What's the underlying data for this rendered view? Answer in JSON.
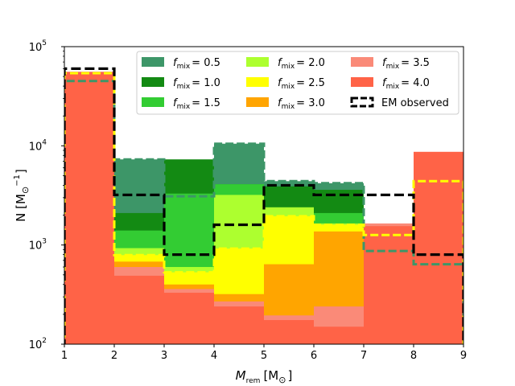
{
  "chart_data": {
    "type": "bar",
    "subtype": "stepfilled-histogram",
    "yscale": "log",
    "xlabel_main": "M",
    "xlabel_sub": "rem",
    "xlabel_unit": "[M",
    "xlabel_unit_sub": "⊙",
    "xlabel_unit_close": "]",
    "ylabel_text": "N [M",
    "ylabel_sub": "⊙",
    "ylabel_sup": "−1",
    "ylabel_close": "]",
    "xlim": [
      1,
      9
    ],
    "ylim": [
      100,
      100000
    ],
    "x_ticks": [
      "1",
      "2",
      "3",
      "4",
      "5",
      "6",
      "7",
      "8",
      "9"
    ],
    "y_ticks": [
      {
        "base": "10",
        "exp": "2",
        "value": 100
      },
      {
        "base": "10",
        "exp": "3",
        "value": 1000
      },
      {
        "base": "10",
        "exp": "4",
        "value": 10000
      },
      {
        "base": "10",
        "exp": "5",
        "value": 100000
      }
    ],
    "bin_edges": [
      1,
      2,
      3,
      4,
      5,
      6,
      7,
      8,
      9
    ],
    "series": [
      {
        "name": "f_mix = 0.5",
        "label_f": "f",
        "label_sub": "mix",
        "label_val": "= 0.5",
        "color": "#3d9668",
        "values": [
          45000,
          7300,
          3100,
          10500,
          4400,
          4200,
          870,
          640
        ]
      },
      {
        "name": "f_mix = 1.0",
        "label_f": "f",
        "label_sub": "mix",
        "label_val": "= 1.0",
        "color": "#138a13",
        "values": [
          47000,
          2100,
          7300,
          4100,
          3900,
          3600,
          1150,
          7900
        ]
      },
      {
        "name": "f_mix = 1.5",
        "label_f": "f",
        "label_sub": "mix",
        "label_val": "= 1.5",
        "color": "#33cc33",
        "values": [
          49000,
          1400,
          3300,
          4100,
          2200,
          2100,
          1100,
          8000
        ]
      },
      {
        "name": "f_mix = 2.0",
        "label_f": "f",
        "label_sub": "mix",
        "label_val": "= 2.0",
        "color": "#adff2f",
        "values": [
          51000,
          930,
          600,
          3200,
          2400,
          1650,
          1200,
          8100
        ]
      },
      {
        "name": "f_mix = 2.5",
        "label_f": "f",
        "label_sub": "mix",
        "label_val": "= 2.5",
        "color": "#ffff00",
        "values": [
          54000,
          790,
          530,
          920,
          1950,
          1600,
          1260,
          4400
        ]
      },
      {
        "name": "f_mix = 3.0",
        "label_f": "f",
        "label_sub": "mix",
        "label_val": "= 3.0",
        "color": "#ffa500",
        "values": [
          55000,
          680,
          400,
          320,
          640,
          1370,
          1250,
          8300
        ]
      },
      {
        "name": "f_mix = 3.5",
        "label_f": "f",
        "label_sub": "mix",
        "label_val": "= 3.5",
        "color": "#fa8a78",
        "values": [
          56000,
          600,
          360,
          270,
          195,
          240,
          1650,
          8500
        ]
      },
      {
        "name": "f_mix = 4.0",
        "label_f": "f",
        "label_sub": "mix",
        "label_val": "= 4.0",
        "color": "#ff6347",
        "values": [
          55000,
          490,
          330,
          240,
          175,
          150,
          1550,
          8700
        ]
      }
    ],
    "outlines": [
      {
        "of": "f_mix = 0.5",
        "color": "#3d9668",
        "values": [
          45000,
          7300,
          3100,
          10500,
          4400,
          4200,
          870,
          640
        ]
      },
      {
        "of": "f_mix = 2.5",
        "color": "#ffff00",
        "values": [
          54000,
          790,
          530,
          920,
          1950,
          1600,
          1260,
          4400
        ]
      }
    ],
    "observed": {
      "name": "EM observed",
      "color": "#000000",
      "values": [
        60000,
        3200,
        800,
        1600,
        4000,
        3200,
        3200,
        800
      ]
    }
  }
}
